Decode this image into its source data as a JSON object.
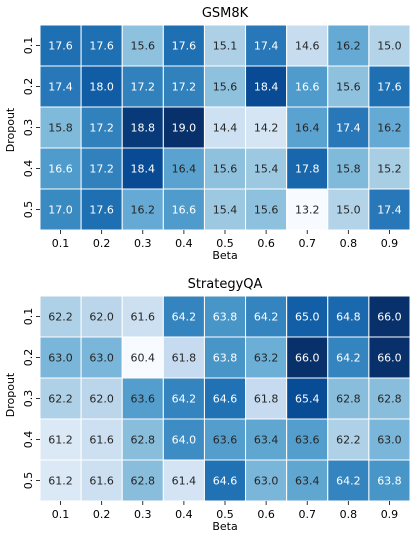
{
  "chart_data": [
    {
      "type": "heatmap",
      "title": "GSM8K",
      "xlabel": "Beta",
      "ylabel": "Dropout",
      "x": [
        "0.1",
        "0.2",
        "0.3",
        "0.4",
        "0.5",
        "0.6",
        "0.7",
        "0.8",
        "0.9"
      ],
      "y": [
        "0.1",
        "0.2",
        "0.3",
        "0.4",
        "0.5"
      ],
      "values": [
        [
          17.6,
          17.6,
          15.6,
          17.6,
          15.1,
          17.4,
          14.6,
          16.2,
          15.0
        ],
        [
          17.4,
          18.0,
          17.2,
          17.2,
          15.6,
          18.4,
          16.6,
          15.6,
          17.6
        ],
        [
          15.8,
          17.2,
          18.8,
          19.0,
          14.4,
          14.2,
          16.4,
          17.4,
          16.2
        ],
        [
          16.6,
          17.2,
          18.4,
          16.4,
          15.6,
          15.4,
          17.8,
          15.8,
          15.2
        ],
        [
          17.0,
          17.6,
          16.2,
          16.6,
          15.4,
          15.6,
          13.2,
          15.0,
          17.4
        ]
      ],
      "colormap": "Blues",
      "vmin": 13.2,
      "vmax": 19.0
    },
    {
      "type": "heatmap",
      "title": "StrategyQA",
      "xlabel": "Beta",
      "ylabel": "Dropout",
      "x": [
        "0.1",
        "0.2",
        "0.3",
        "0.4",
        "0.5",
        "0.6",
        "0.7",
        "0.8",
        "0.9"
      ],
      "y": [
        "0.1",
        "0.2",
        "0.3",
        "0.4",
        "0.5"
      ],
      "values": [
        [
          62.2,
          62.0,
          61.6,
          64.2,
          63.8,
          64.2,
          65.0,
          64.8,
          66.0
        ],
        [
          63.0,
          63.0,
          60.4,
          61.8,
          63.8,
          63.2,
          66.0,
          64.2,
          66.0
        ],
        [
          62.2,
          62.0,
          63.6,
          64.2,
          64.6,
          61.8,
          65.4,
          62.8,
          62.8
        ],
        [
          61.2,
          61.6,
          62.8,
          64.0,
          63.6,
          63.4,
          63.6,
          62.2,
          63.0
        ],
        [
          61.2,
          61.6,
          62.8,
          61.4,
          64.6,
          63.0,
          63.4,
          64.2,
          63.8
        ]
      ],
      "colormap": "Blues",
      "vmin": 60.4,
      "vmax": 66.0
    }
  ]
}
